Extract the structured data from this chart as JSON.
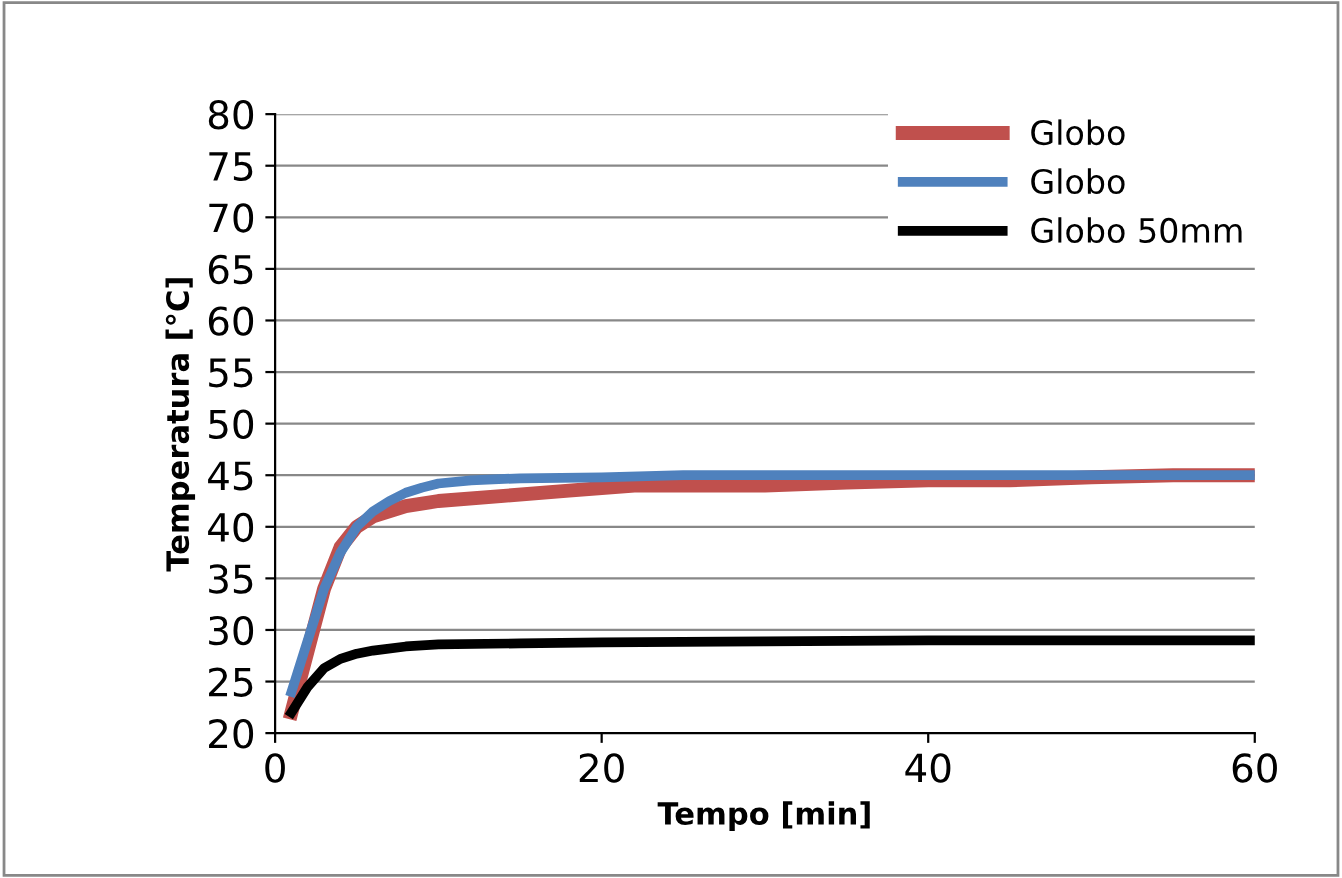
{
  "chart_data": {
    "type": "line",
    "xlabel": "Tempo [min]",
    "ylabel": "Temperatura [°C]",
    "xlim": [
      0,
      60
    ],
    "xticks": [
      0,
      20,
      40,
      60
    ],
    "ylim": [
      20,
      80
    ],
    "yticks": [
      20,
      25,
      30,
      35,
      40,
      45,
      50,
      55,
      60,
      65,
      70,
      75,
      80
    ],
    "grid": "y",
    "legend": "top right",
    "marker": "none",
    "line_style": "solid",
    "series": [
      {
        "name": "Globo",
        "color": "#c0504d",
        "x": [
          1,
          2,
          3,
          4,
          5,
          6,
          8,
          10,
          14,
          18,
          22,
          26,
          30,
          35,
          40,
          45,
          50,
          55,
          60
        ],
        "values": [
          22,
          28,
          34,
          38,
          40,
          41,
          42,
          42.5,
          43,
          43.5,
          44,
          44,
          44,
          44.3,
          44.5,
          44.5,
          44.8,
          45,
          45
        ]
      },
      {
        "name": "Globo",
        "color": "#4f81bd",
        "x": [
          1,
          2,
          3,
          4,
          5,
          6,
          7,
          8,
          9,
          10,
          12,
          15,
          20,
          25,
          30,
          40,
          50,
          60
        ],
        "values": [
          24,
          29,
          34,
          37.5,
          40,
          41.5,
          42.5,
          43.3,
          43.8,
          44.2,
          44.5,
          44.7,
          44.8,
          45,
          45,
          45,
          45,
          45
        ]
      },
      {
        "name": "Globo 50mm",
        "color": "#000000",
        "x": [
          1,
          2,
          3,
          4,
          5,
          6,
          8,
          10,
          15,
          20,
          30,
          40,
          50,
          60
        ],
        "values": [
          22,
          24.5,
          26.3,
          27.2,
          27.7,
          28,
          28.4,
          28.6,
          28.7,
          28.8,
          28.9,
          29,
          29,
          29
        ]
      }
    ]
  }
}
